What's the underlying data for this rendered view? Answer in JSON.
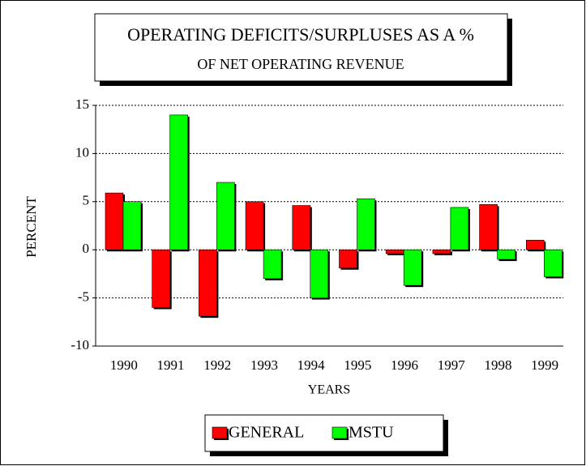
{
  "chart_data": {
    "type": "bar",
    "title": "OPERATING DEFICITS/SURPLUSES AS A %",
    "subtitle": "OF NET OPERATING REVENUE",
    "x_label": "YEARS",
    "y_label": "PERCENT",
    "categories": [
      "1990",
      "1991",
      "1992",
      "1993",
      "1994",
      "1995",
      "1996",
      "1997",
      "1998",
      "1999"
    ],
    "series": [
      {
        "name": "GENERAL",
        "color": "#ff0000",
        "values": [
          5.9,
          -6,
          -6.9,
          5,
          4.6,
          -1.9,
          -0.4,
          -0.4,
          4.7,
          1.0
        ]
      },
      {
        "name": "MSTU",
        "color": "#00ff00",
        "values": [
          5,
          14,
          7,
          -3,
          -5,
          5.3,
          -3.7,
          4.4,
          -1,
          -2.8
        ]
      }
    ],
    "ylim": [
      -10,
      15
    ],
    "yticks": [
      -10,
      -5,
      0,
      5,
      10,
      15
    ],
    "grid": true,
    "legend": "bottom"
  }
}
